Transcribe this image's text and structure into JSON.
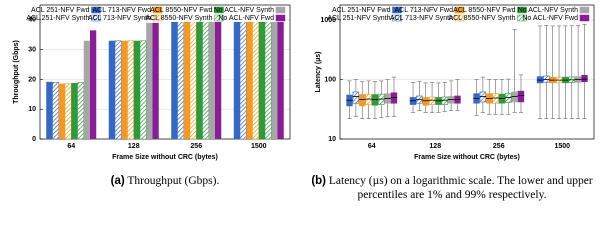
{
  "chart_data": [
    {
      "type": "bar",
      "ylabel": "Throughput (Gbps)",
      "xlabel": "Frame Size without CRC (bytes)",
      "categories": [
        "64",
        "128",
        "256",
        "1500"
      ],
      "ylim": [
        0,
        45
      ],
      "yticks": [
        0,
        10,
        20,
        30,
        40
      ],
      "grid": true,
      "series": [
        {
          "name": "ACL 251-NFV Fwd",
          "color": "#3568c4",
          "pattern": "solid",
          "values": [
            19.2,
            33,
            39.5,
            39.8
          ]
        },
        {
          "name": "ACL 251-NFV Synth",
          "color": "#3568c4",
          "pattern": "hatch",
          "values": [
            19,
            33,
            39.5,
            39.8
          ]
        },
        {
          "name": "ACL 713-NFV Fwd",
          "color": "#f39a22",
          "pattern": "solid",
          "values": [
            18.6,
            33,
            39.5,
            39.8
          ]
        },
        {
          "name": "ACL 713-NFV Synth",
          "color": "#f39a22",
          "pattern": "hatch",
          "values": [
            18.6,
            33,
            39.5,
            39.8
          ]
        },
        {
          "name": "ACL 8550-NFV Fwd",
          "color": "#2e9a3b",
          "pattern": "solid",
          "values": [
            18.8,
            33,
            39.5,
            39.8
          ]
        },
        {
          "name": "ACL 8550-NFV Synth",
          "color": "#2e9a3b",
          "pattern": "hatch",
          "values": [
            19,
            33,
            39.5,
            39.8
          ]
        },
        {
          "name": "No ACL-NFV Synth",
          "color": "#a6a6a6",
          "pattern": "solid",
          "values": [
            33,
            39,
            39.5,
            39.8
          ]
        },
        {
          "name": "No ACL-NFV Fwd",
          "color": "#8a1c98",
          "pattern": "solid",
          "values": [
            36.5,
            39,
            39.5,
            39.8
          ]
        }
      ]
    },
    {
      "type": "box",
      "ylabel": "Latency (µs)",
      "xlabel": "Frame Size without CRC (bytes)",
      "categories": [
        "64",
        "128",
        "256",
        "1500"
      ],
      "ylim": [
        10,
        1800
      ],
      "yticks": [
        10,
        100,
        1000
      ],
      "log_scale": true,
      "grid": true,
      "series": [
        {
          "name": "ACL 251-NFV Fwd",
          "color": "#3568c4",
          "pattern": "solid",
          "low": [
            22,
            28,
            25,
            22
          ],
          "q1": [
            36,
            38,
            40,
            88
          ],
          "median": [
            45,
            44,
            48,
            98
          ],
          "q3": [
            55,
            50,
            58,
            112
          ],
          "high": [
            95,
            90,
            100,
            800
          ]
        },
        {
          "name": "ACL 251-NFV Synth",
          "color": "#3568c4",
          "pattern": "hatch",
          "low": [
            24,
            30,
            28,
            22
          ],
          "q1": [
            40,
            40,
            42,
            90
          ],
          "median": [
            52,
            46,
            52,
            100
          ],
          "q3": [
            62,
            53,
            62,
            115
          ],
          "high": [
            100,
            92,
            110,
            820
          ]
        },
        {
          "name": "ACL 713-NFV Fwd",
          "color": "#f39a22",
          "pattern": "solid",
          "low": [
            22,
            28,
            26,
            22
          ],
          "q1": [
            36,
            37,
            40,
            88
          ],
          "median": [
            46,
            44,
            48,
            98
          ],
          "q3": [
            56,
            50,
            58,
            110
          ],
          "high": [
            92,
            88,
            100,
            800
          ]
        },
        {
          "name": "ACL 713-NFV Synth",
          "color": "#f39a22",
          "pattern": "hatch",
          "low": [
            22,
            28,
            26,
            22
          ],
          "q1": [
            38,
            38,
            40,
            88
          ],
          "median": [
            47,
            45,
            49,
            98
          ],
          "q3": [
            57,
            51,
            58,
            110
          ],
          "high": [
            95,
            90,
            100,
            800
          ]
        },
        {
          "name": "ACL 8550-NFV Fwd",
          "color": "#2e9a3b",
          "pattern": "solid",
          "low": [
            22,
            28,
            26,
            22
          ],
          "q1": [
            37,
            38,
            40,
            88
          ],
          "median": [
            46,
            44,
            48,
            98
          ],
          "q3": [
            56,
            50,
            57,
            110
          ],
          "high": [
            93,
            88,
            100,
            800
          ]
        },
        {
          "name": "ACL 8550-NFV Synth",
          "color": "#2e9a3b",
          "pattern": "hatch",
          "low": [
            23,
            29,
            26,
            22
          ],
          "q1": [
            38,
            38,
            41,
            89
          ],
          "median": [
            47,
            45,
            50,
            99
          ],
          "q3": [
            57,
            51,
            59,
            111
          ],
          "high": [
            95,
            90,
            102,
            805
          ]
        },
        {
          "name": "No ACL-NFV Synth",
          "color": "#a6a6a6",
          "pattern": "solid",
          "low": [
            24,
            30,
            28,
            22
          ],
          "q1": [
            40,
            40,
            42,
            90
          ],
          "median": [
            48,
            46,
            52,
            100
          ],
          "q3": [
            58,
            52,
            62,
            112
          ],
          "high": [
            100,
            95,
            700,
            820
          ]
        },
        {
          "name": "No ACL-NFV Fwd",
          "color": "#8a1c98",
          "pattern": "solid",
          "low": [
            24,
            30,
            28,
            22
          ],
          "q1": [
            40,
            40,
            42,
            92
          ],
          "median": [
            50,
            46,
            54,
            102
          ],
          "q3": [
            60,
            53,
            64,
            118
          ],
          "high": [
            110,
            100,
            120,
            850
          ]
        }
      ]
    }
  ],
  "captions": [
    {
      "label": "(a)",
      "text": "Throughput (Gbps)."
    },
    {
      "label": "(b)",
      "text": "Latency (µs) on a logarithmic scale. The lower and upper percentiles are 1% and 99% respectively."
    }
  ]
}
